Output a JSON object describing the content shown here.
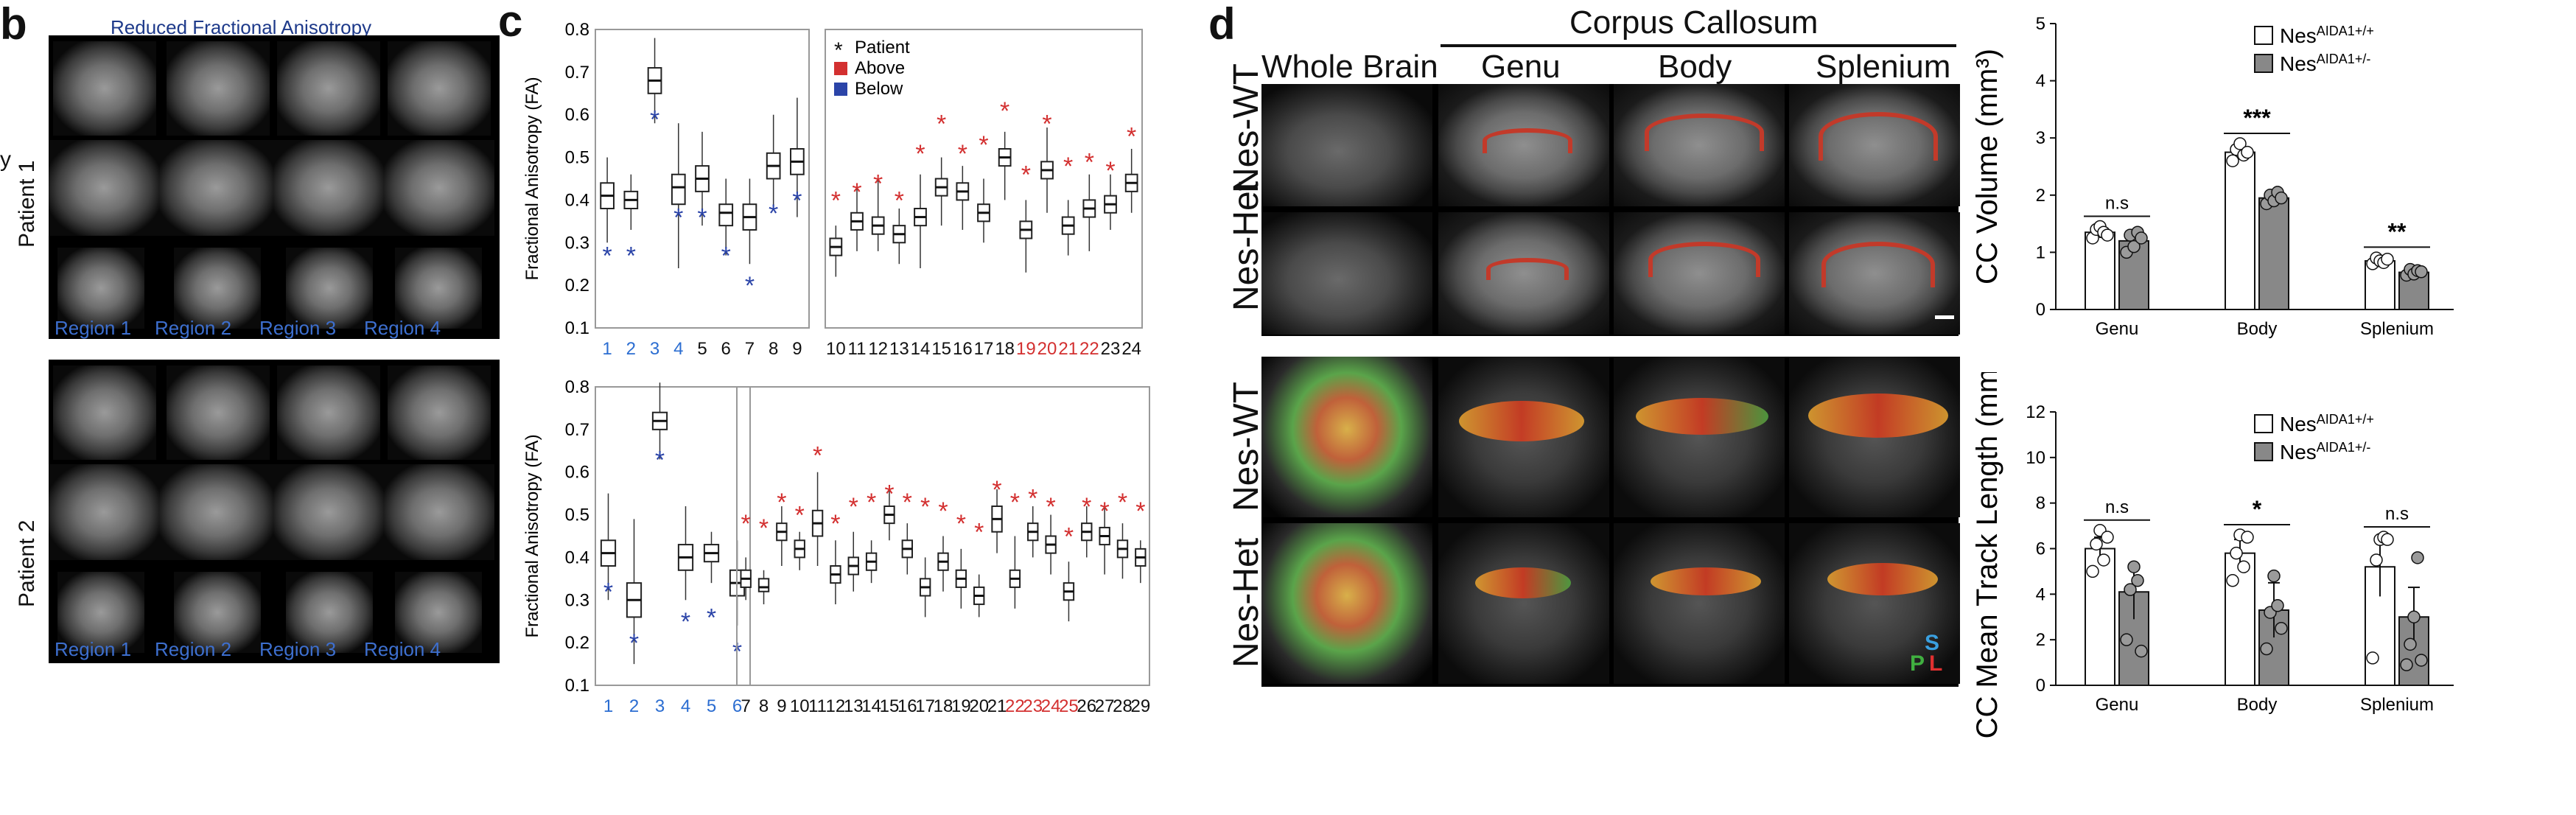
{
  "panels": {
    "b": {
      "letter": "b",
      "title": "Reduced Fractional Anisotropy",
      "patients": [
        "Patient 1",
        "Patient 2"
      ],
      "regions": [
        "Region 1",
        "Region 2",
        "Region 3",
        "Region 4"
      ],
      "edge_char": "y"
    },
    "c": {
      "letter": "c"
    },
    "d": {
      "letter": "d",
      "header_group": "Corpus Callosum",
      "columns": [
        "Whole Brain",
        "Genu",
        "Body",
        "Splenium"
      ],
      "rows_top": [
        "Nes-WT",
        "Nes-Het"
      ],
      "rows_bottom": [
        "Nes-WT",
        "Nes-Het"
      ],
      "orientation_letters": [
        "S",
        "P",
        "L"
      ]
    }
  },
  "chart_data": [
    {
      "type": "box",
      "id": "c-top",
      "ylabel": "Fractional Anisotropy (FA)",
      "ylim": [
        0.1,
        0.8
      ],
      "yticks": [
        "0.1",
        "0.2",
        "0.3",
        "0.4",
        "0.5",
        "0.6",
        "0.7",
        "0.8"
      ],
      "legend": [
        {
          "label": "Patient",
          "color": "#111111",
          "marker": "*"
        },
        {
          "label": "Above",
          "color": "#d33030",
          "marker": "square"
        },
        {
          "label": "Below",
          "color": "#2b44a8",
          "marker": "square"
        }
      ],
      "groups": [
        {
          "categories": [
            "1",
            "2",
            "3",
            "4",
            "5",
            "6",
            "7",
            "8",
            "9"
          ],
          "label_colors": [
            "#2b6dd1",
            "#2b6dd1",
            "#2b6dd1",
            "#2b6dd1",
            "#111111",
            "#111111",
            "#111111",
            "#111111",
            "#111111"
          ],
          "medians": [
            0.41,
            0.4,
            0.68,
            0.43,
            0.45,
            0.37,
            0.36,
            0.48,
            0.49
          ],
          "q1": [
            0.38,
            0.38,
            0.65,
            0.39,
            0.42,
            0.34,
            0.33,
            0.45,
            0.46
          ],
          "q3": [
            0.44,
            0.42,
            0.71,
            0.46,
            0.48,
            0.39,
            0.39,
            0.51,
            0.52
          ],
          "min": [
            0.3,
            0.33,
            0.58,
            0.24,
            0.34,
            0.27,
            0.25,
            0.38,
            0.36
          ],
          "max": [
            0.5,
            0.46,
            0.78,
            0.58,
            0.56,
            0.45,
            0.45,
            0.6,
            0.64
          ],
          "patient": [
            0.27,
            0.27,
            0.59,
            0.36,
            0.36,
            0.27,
            0.2,
            0.37,
            0.4
          ],
          "patient_color": [
            "#2b44a8",
            "#2b44a8",
            "#2b44a8",
            "#2b44a8",
            "#2b44a8",
            "#2b44a8",
            "#2b44a8",
            "#2b44a8",
            "#2b44a8"
          ]
        },
        {
          "categories": [
            "10",
            "11",
            "12",
            "13",
            "14",
            "15",
            "16",
            "17",
            "18",
            "19",
            "20",
            "21",
            "22",
            "23",
            "24"
          ],
          "label_colors": [
            "#111111",
            "#111111",
            "#111111",
            "#111111",
            "#111111",
            "#111111",
            "#111111",
            "#111111",
            "#111111",
            "#d33030",
            "#d33030",
            "#d33030",
            "#d33030",
            "#111111",
            "#111111"
          ],
          "medians": [
            0.29,
            0.35,
            0.34,
            0.32,
            0.36,
            0.43,
            0.42,
            0.37,
            0.5,
            0.33,
            0.47,
            0.34,
            0.38,
            0.39,
            0.44
          ],
          "q1": [
            0.27,
            0.33,
            0.32,
            0.3,
            0.34,
            0.41,
            0.4,
            0.35,
            0.48,
            0.31,
            0.45,
            0.32,
            0.36,
            0.37,
            0.42
          ],
          "q3": [
            0.31,
            0.37,
            0.36,
            0.34,
            0.38,
            0.45,
            0.44,
            0.39,
            0.52,
            0.35,
            0.49,
            0.36,
            0.4,
            0.41,
            0.46
          ],
          "min": [
            0.22,
            0.28,
            0.28,
            0.25,
            0.24,
            0.34,
            0.33,
            0.3,
            0.4,
            0.23,
            0.37,
            0.27,
            0.28,
            0.33,
            0.37
          ],
          "max": [
            0.34,
            0.43,
            0.45,
            0.38,
            0.46,
            0.5,
            0.48,
            0.45,
            0.56,
            0.4,
            0.57,
            0.4,
            0.46,
            0.46,
            0.52
          ],
          "patient": [
            0.4,
            0.42,
            0.44,
            0.4,
            0.51,
            0.58,
            0.51,
            0.53,
            0.61,
            0.46,
            0.58,
            0.48,
            0.49,
            0.47,
            0.55
          ],
          "patient_color": [
            "#d33030",
            "#d33030",
            "#d33030",
            "#d33030",
            "#d33030",
            "#d33030",
            "#d33030",
            "#d33030",
            "#d33030",
            "#d33030",
            "#d33030",
            "#d33030",
            "#d33030",
            "#d33030",
            "#d33030"
          ]
        }
      ]
    },
    {
      "type": "box",
      "id": "c-bottom",
      "ylabel": "Fractional Anisotropy (FA)",
      "ylim": [
        0.1,
        0.8
      ],
      "yticks": [
        "0.1",
        "0.2",
        "0.3",
        "0.4",
        "0.5",
        "0.6",
        "0.7",
        "0.8"
      ],
      "groups": [
        {
          "categories": [
            "1",
            "2",
            "3",
            "4",
            "5",
            "6"
          ],
          "label_colors": [
            "#2b6dd1",
            "#2b6dd1",
            "#2b6dd1",
            "#2b6dd1",
            "#2b6dd1",
            "#2b6dd1"
          ],
          "medians": [
            0.41,
            0.3,
            0.72,
            0.4,
            0.41,
            0.34
          ],
          "q1": [
            0.38,
            0.26,
            0.7,
            0.37,
            0.39,
            0.31
          ],
          "q3": [
            0.44,
            0.34,
            0.74,
            0.43,
            0.43,
            0.37
          ],
          "min": [
            0.3,
            0.15,
            0.63,
            0.3,
            0.34,
            0.24
          ],
          "max": [
            0.55,
            0.49,
            0.81,
            0.52,
            0.46,
            0.44
          ],
          "patient": [
            0.32,
            0.2,
            0.63,
            0.25,
            0.26,
            0.18
          ],
          "patient_color": [
            "#2b44a8",
            "#2b44a8",
            "#2b44a8",
            "#2b44a8",
            "#2b44a8",
            "#2b44a8"
          ]
        },
        {
          "categories": [
            "7",
            "8",
            "9",
            "10",
            "11",
            "12",
            "13",
            "14",
            "15",
            "16",
            "17",
            "18",
            "19",
            "20",
            "21",
            "22",
            "23",
            "24",
            "25",
            "26",
            "27",
            "28",
            "29"
          ],
          "label_colors": [
            "#111111",
            "#111111",
            "#111111",
            "#111111",
            "#111111",
            "#111111",
            "#111111",
            "#111111",
            "#111111",
            "#111111",
            "#111111",
            "#111111",
            "#111111",
            "#111111",
            "#111111",
            "#d33030",
            "#d33030",
            "#d33030",
            "#d33030",
            "#111111",
            "#111111",
            "#111111",
            "#111111"
          ],
          "medians": [
            0.35,
            0.33,
            0.46,
            0.42,
            0.48,
            0.36,
            0.38,
            0.39,
            0.5,
            0.42,
            0.33,
            0.39,
            0.35,
            0.31,
            0.49,
            0.35,
            0.46,
            0.43,
            0.32,
            0.46,
            0.45,
            0.42,
            0.4
          ],
          "q1": [
            0.33,
            0.32,
            0.44,
            0.4,
            0.45,
            0.34,
            0.36,
            0.37,
            0.48,
            0.4,
            0.31,
            0.37,
            0.33,
            0.29,
            0.46,
            0.33,
            0.44,
            0.41,
            0.3,
            0.44,
            0.43,
            0.4,
            0.38
          ],
          "q3": [
            0.37,
            0.35,
            0.48,
            0.44,
            0.51,
            0.38,
            0.4,
            0.41,
            0.52,
            0.44,
            0.35,
            0.41,
            0.37,
            0.33,
            0.52,
            0.37,
            0.48,
            0.45,
            0.34,
            0.48,
            0.47,
            0.44,
            0.42
          ],
          "min": [
            0.3,
            0.29,
            0.38,
            0.37,
            0.38,
            0.29,
            0.32,
            0.34,
            0.44,
            0.36,
            0.26,
            0.32,
            0.28,
            0.26,
            0.41,
            0.28,
            0.4,
            0.36,
            0.25,
            0.4,
            0.36,
            0.35,
            0.34
          ],
          "max": [
            0.4,
            0.37,
            0.52,
            0.46,
            0.6,
            0.44,
            0.46,
            0.44,
            0.56,
            0.48,
            0.4,
            0.45,
            0.42,
            0.36,
            0.56,
            0.45,
            0.52,
            0.5,
            0.39,
            0.52,
            0.52,
            0.48,
            0.44
          ],
          "patient": [
            0.48,
            0.47,
            0.53,
            0.5,
            0.64,
            0.48,
            0.52,
            0.53,
            0.55,
            0.53,
            0.52,
            0.51,
            0.48,
            0.46,
            0.56,
            0.53,
            0.54,
            0.52,
            0.45,
            0.52,
            0.51,
            0.53,
            0.51
          ],
          "patient_color": [
            "#d33030",
            "#d33030",
            "#d33030",
            "#d33030",
            "#d33030",
            "#d33030",
            "#d33030",
            "#d33030",
            "#d33030",
            "#d33030",
            "#d33030",
            "#d33030",
            "#d33030",
            "#d33030",
            "#d33030",
            "#d33030",
            "#d33030",
            "#d33030",
            "#d33030",
            "#d33030",
            "#d33030",
            "#d33030",
            "#d33030"
          ]
        }
      ]
    },
    {
      "type": "bar",
      "id": "d-volume",
      "ylabel": "CC Volume (mm³)",
      "ylim": [
        0,
        5
      ],
      "yticks": [
        "0",
        "1",
        "2",
        "3",
        "4",
        "5"
      ],
      "categories": [
        "Genu",
        "Body",
        "Splenium"
      ],
      "series": [
        {
          "name": "Nes",
          "sup": "AIDA1+/+",
          "values": [
            1.35,
            2.75,
            0.85
          ],
          "errors": [
            0.1,
            0.12,
            0.06
          ],
          "points": [
            [
              1.25,
              1.4,
              1.45,
              1.35,
              1.3
            ],
            [
              2.6,
              2.8,
              2.9,
              2.7,
              2.75
            ],
            [
              0.8,
              0.9,
              0.85,
              0.82,
              0.88
            ]
          ]
        },
        {
          "name": "Nes",
          "sup": "AIDA1+/-",
          "values": [
            1.2,
            1.95,
            0.65
          ],
          "errors": [
            0.15,
            0.1,
            0.06
          ],
          "points": [
            [
              1.0,
              1.3,
              1.1,
              1.35,
              1.25
            ],
            [
              1.85,
              2.0,
              1.9,
              2.05,
              1.95
            ],
            [
              0.6,
              0.7,
              0.62,
              0.68,
              0.66
            ]
          ]
        }
      ],
      "significance": [
        "n.s",
        "***",
        "**"
      ]
    },
    {
      "type": "bar",
      "id": "d-track",
      "ylabel": "CC Mean Track Length (mm)",
      "ylim": [
        0,
        12
      ],
      "yticks": [
        "0",
        "2",
        "4",
        "6",
        "8",
        "10",
        "12"
      ],
      "categories": [
        "Genu",
        "Body",
        "Splenium"
      ],
      "series": [
        {
          "name": "Nes",
          "sup": "AIDA1+/+",
          "values": [
            6.0,
            5.8,
            5.2
          ],
          "errors": [
            0.5,
            0.6,
            1.3
          ],
          "points": [
            [
              5.0,
              6.2,
              6.8,
              5.5,
              6.5
            ],
            [
              4.6,
              5.8,
              6.6,
              5.2,
              6.5
            ],
            [
              1.2,
              5.5,
              6.4,
              6.5,
              6.4
            ]
          ]
        },
        {
          "name": "Nes",
          "sup": "AIDA1+/-",
          "values": [
            4.1,
            3.3,
            3.0
          ],
          "errors": [
            1.2,
            1.2,
            1.3
          ],
          "points": [
            [
              2.0,
              4.2,
              5.2,
              4.6,
              1.5
            ],
            [
              1.6,
              3.2,
              4.8,
              3.5,
              2.5
            ],
            [
              0.9,
              1.8,
              3.0,
              5.6,
              1.1
            ]
          ]
        }
      ],
      "significance": [
        "n.s",
        "*",
        "n.s"
      ]
    }
  ]
}
